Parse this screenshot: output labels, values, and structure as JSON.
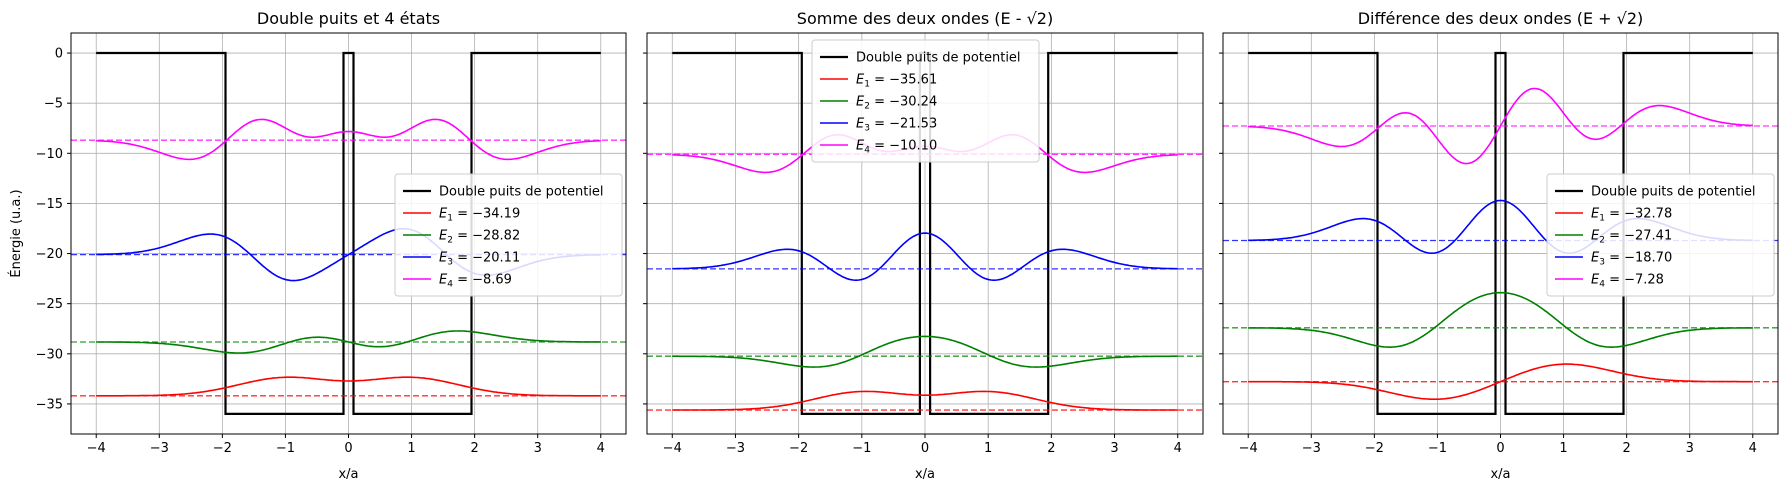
{
  "shared": {
    "xlabel": "x/a",
    "ylabel": "Énergie (u.a.)",
    "xlim": [
      -4.4,
      4.4
    ],
    "ylim": [
      -38,
      2
    ],
    "xticks": [
      -4,
      -3,
      -2,
      -1,
      0,
      1,
      2,
      3,
      4
    ],
    "yticks": [
      0,
      -5,
      -10,
      -15,
      -20,
      -25,
      -30,
      -35
    ],
    "grid": true,
    "potential": {
      "name": "Double puits de potentiel",
      "color": "#000000",
      "x": [
        -4,
        -1.95,
        -1.95,
        -0.08,
        -0.08,
        0.08,
        0.08,
        1.95,
        1.95,
        4
      ],
      "y": [
        0,
        0,
        -36,
        -36,
        0,
        0,
        -36,
        -36,
        0,
        0
      ]
    },
    "state_colors": [
      "#ff0000",
      "#008000",
      "#0000ff",
      "#ff00ff"
    ]
  },
  "chart_data": [
    {
      "type": "line",
      "title": "Double puits et 4 états",
      "legend_placement": "center-right",
      "series": [
        {
          "name": "E_1 = −34.19",
          "label_sub": "1",
          "label_value": " = −34.19",
          "energy": -34.19,
          "amplitude": 1.8,
          "waves": [
            [
              1,
              -1,
              1,
              1.0,
              1.0
            ],
            [
              1,
              1,
              1,
              1.0,
              1.0
            ]
          ]
        },
        {
          "name": "E_2 = −28.82",
          "label_sub": "2",
          "label_value": " = −28.82",
          "energy": -28.82,
          "amplitude": 1.8,
          "waves": [
            [
              1,
              -1,
              2,
              1.0,
              1.0
            ],
            [
              1,
              1,
              2,
              1.0,
              1.0
            ]
          ]
        },
        {
          "name": "E_3 = −20.11",
          "label_sub": "3",
          "label_value": " = −20.11",
          "energy": -20.11,
          "amplitude": 1.8,
          "waves": [
            [
              1,
              -1,
              3,
              1.0,
              1.0
            ],
            [
              -1,
              1,
              3,
              1.0,
              1.0
            ]
          ]
        },
        {
          "name": "E_4 = −8.69",
          "label_sub": "4",
          "label_value": " = −8.69",
          "energy": -8.69,
          "amplitude": 1.7,
          "waves": [
            [
              1,
              -1,
              4,
              1.0,
              1.0
            ],
            [
              -1,
              1,
              4,
              1.0,
              1.0
            ]
          ]
        }
      ]
    },
    {
      "type": "line",
      "title": "Somme des deux ondes (E - √2)",
      "legend_placement": "upper-center",
      "series": [
        {
          "name": "E_1 = −35.61",
          "label_sub": "1",
          "label_value": " = −35.61",
          "energy": -35.61,
          "amplitude": 1.8,
          "waves": [
            [
              1,
              -1,
              1,
              1.0,
              1.0
            ],
            [
              1,
              1,
              1,
              1.0,
              1.0
            ]
          ]
        },
        {
          "name": "E_2 = −30.24",
          "label_sub": "2",
          "label_value": " = −30.24",
          "energy": -30.24,
          "amplitude": 1.8,
          "waves": [
            [
              1,
              -1,
              2,
              1.0,
              1.0
            ],
            [
              -1,
              1,
              2,
              1.0,
              1.0
            ]
          ]
        },
        {
          "name": "E_3 = −21.53",
          "label_sub": "3",
          "label_value": " = −21.53",
          "energy": -21.53,
          "amplitude": 1.7,
          "waves": [
            [
              1,
              -1,
              3,
              1.0,
              1.0
            ],
            [
              1,
              1,
              3,
              1.0,
              1.0
            ]
          ]
        },
        {
          "name": "E_4 = −10.10",
          "label_sub": "4",
          "label_value": " = −10.10",
          "energy": -10.1,
          "amplitude": 1.6,
          "waves": [
            [
              1,
              -1,
              4,
              1.0,
              1.0
            ],
            [
              -1,
              1,
              4,
              1.0,
              1.0
            ]
          ]
        }
      ]
    },
    {
      "type": "line",
      "title": "Différence des deux ondes (E + √2)",
      "legend_placement": "center-right",
      "series": [
        {
          "name": "E_1 = −32.78",
          "label_sub": "1",
          "label_value": " = −32.78",
          "energy": -32.78,
          "amplitude": 1.8,
          "waves": [
            [
              -1,
              -1,
              1,
              1.0,
              1.0
            ],
            [
              1,
              1,
              1,
              1.0,
              1.0
            ]
          ]
        },
        {
          "name": "E_2 = −27.41",
          "label_sub": "2",
          "label_value": " = −27.41",
          "energy": -27.41,
          "amplitude": 3.2,
          "waves": [
            [
              1,
              -1,
              2,
              1.0,
              1.0
            ],
            [
              -1,
              1,
              2,
              1.0,
              1.0
            ]
          ]
        },
        {
          "name": "E_3 = −18.70",
          "label_sub": "3",
          "label_value": " = −18.70",
          "energy": -18.7,
          "amplitude": 1.9,
          "waves": [
            [
              1,
              -1,
              3,
              1.0,
              1.0
            ],
            [
              1,
              1,
              3,
              1.0,
              1.0
            ]
          ]
        },
        {
          "name": "E_4 = −7.28",
          "label_sub": "4",
          "label_value": " = −7.28",
          "energy": -7.28,
          "amplitude": 1.8,
          "waves": [
            [
              1,
              -1,
              4,
              1.0,
              1.0
            ],
            [
              1,
              1,
              4,
              1.0,
              1.0
            ]
          ]
        }
      ]
    }
  ]
}
